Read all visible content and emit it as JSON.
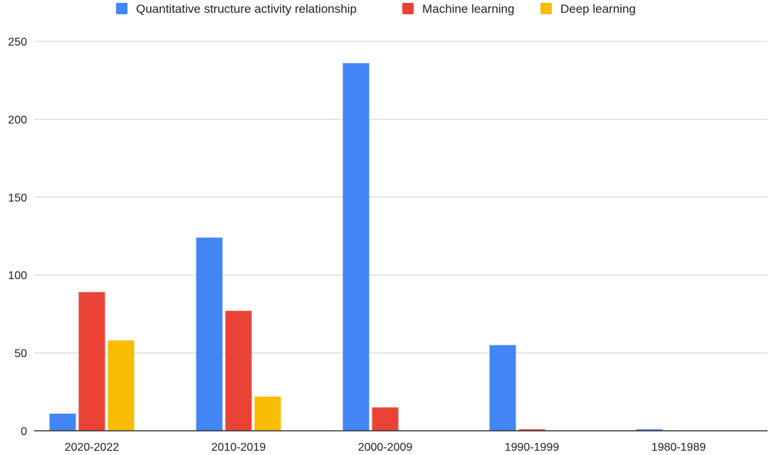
{
  "chart_data": {
    "type": "bar",
    "title": "",
    "xlabel": "",
    "ylabel": "",
    "categories": [
      "2020-2022",
      "2010-2019",
      "2000-2009",
      "1990-1999",
      "1980-1989"
    ],
    "series": [
      {
        "name": "Quantitative structure activity relationship",
        "color": "#4285f4",
        "values": [
          11,
          124,
          236,
          55,
          1
        ]
      },
      {
        "name": "Machine learning",
        "color": "#ea4335",
        "values": [
          89,
          77,
          15,
          1,
          0
        ]
      },
      {
        "name": "Deep learning",
        "color": "#fbbc04",
        "values": [
          58,
          22,
          0,
          0,
          0
        ]
      }
    ],
    "ylim": [
      0,
      250
    ],
    "yticks": [
      0,
      50,
      100,
      150,
      200,
      250
    ],
    "grid": true,
    "legend_position": "top-center"
  }
}
